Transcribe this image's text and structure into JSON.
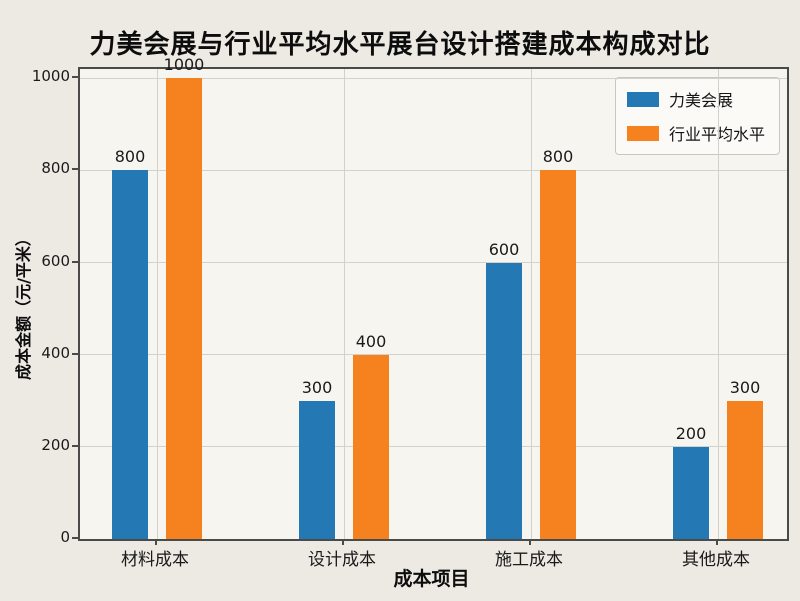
{
  "chart_data": {
    "type": "bar",
    "title": "力美会展与行业平均水平展台设计搭建成本构成对比",
    "xlabel": "成本项目",
    "ylabel": "成本金额（元/平米）",
    "categories": [
      "材料成本",
      "设计成本",
      "施工成本",
      "其他成本"
    ],
    "series": [
      {
        "name": "力美会展",
        "color": "#2478b4",
        "values": [
          800,
          300,
          600,
          200
        ]
      },
      {
        "name": "行业平均水平",
        "color": "#f5821e",
        "values": [
          1000,
          400,
          800,
          300
        ]
      }
    ],
    "yticks": [
      0,
      200,
      400,
      600,
      800,
      1000
    ],
    "ylim": [
      0,
      1020
    ],
    "grid": true,
    "legend_position": "upper right",
    "bar_labels": true
  }
}
